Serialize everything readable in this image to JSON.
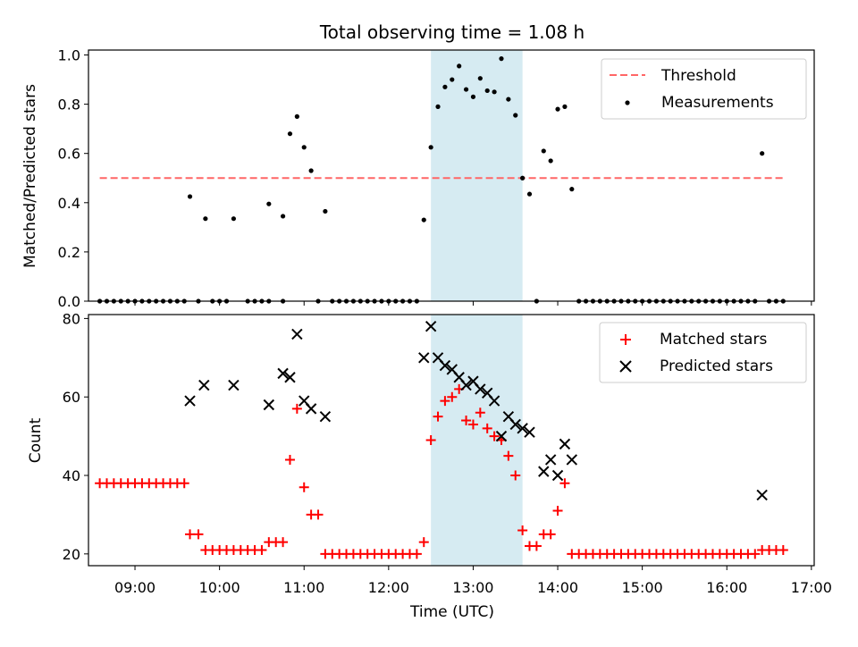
{
  "chart_data": {
    "type": "scatter",
    "title": "Total observing time = 1.08 h",
    "xlabel": "Time (UTC)",
    "x_ticks": [
      "09:00",
      "10:00",
      "11:00",
      "12:00",
      "13:00",
      "14:00",
      "15:00",
      "16:00",
      "17:00"
    ],
    "xlim": [
      "08:27",
      "17:02"
    ],
    "shaded_interval": [
      "12:30",
      "13:35"
    ],
    "colors": {
      "shade": "#add8e6",
      "threshold": "#ff6666",
      "matched": "#ff0000",
      "predicted": "#000000",
      "measurements": "#000000"
    },
    "panels": [
      {
        "ylabel": "Matched/Predicted stars",
        "ylim": [
          0,
          1.02
        ],
        "y_ticks": [
          "0.0",
          "0.2",
          "0.4",
          "0.6",
          "0.8",
          "1.0"
        ],
        "legend_position": "top-right",
        "threshold": {
          "name": "Threshold",
          "value": 0.5,
          "x_start": "08:35",
          "x_end": "16:40"
        },
        "series": [
          {
            "name": "Measurements",
            "marker": "dot",
            "points": [
              [
                "08:35",
                0
              ],
              [
                "08:40",
                0
              ],
              [
                "08:45",
                0
              ],
              [
                "08:50",
                0
              ],
              [
                "08:55",
                0
              ],
              [
                "09:00",
                0
              ],
              [
                "09:05",
                0
              ],
              [
                "09:10",
                0
              ],
              [
                "09:15",
                0
              ],
              [
                "09:20",
                0
              ],
              [
                "09:25",
                0
              ],
              [
                "09:30",
                0
              ],
              [
                "09:35",
                0
              ],
              [
                "09:39",
                0.425
              ],
              [
                "09:45",
                0
              ],
              [
                "09:50",
                0.335
              ],
              [
                "09:55",
                0
              ],
              [
                "10:00",
                0
              ],
              [
                "10:05",
                0
              ],
              [
                "10:10",
                0.335
              ],
              [
                "10:20",
                0
              ],
              [
                "10:25",
                0
              ],
              [
                "10:30",
                0
              ],
              [
                "10:35",
                0
              ],
              [
                "10:35",
                0.395
              ],
              [
                "10:45",
                0
              ],
              [
                "10:45",
                0.345
              ],
              [
                "10:50",
                0.68
              ],
              [
                "10:55",
                0.75
              ],
              [
                "11:00",
                0.625
              ],
              [
                "11:05",
                0.53
              ],
              [
                "11:10",
                0
              ],
              [
                "11:15",
                0.365
              ],
              [
                "11:20",
                0
              ],
              [
                "11:25",
                0
              ],
              [
                "11:30",
                0
              ],
              [
                "11:35",
                0
              ],
              [
                "11:40",
                0
              ],
              [
                "11:45",
                0
              ],
              [
                "11:50",
                0
              ],
              [
                "11:55",
                0
              ],
              [
                "12:00",
                0
              ],
              [
                "12:05",
                0
              ],
              [
                "12:10",
                0
              ],
              [
                "12:15",
                0
              ],
              [
                "12:20",
                0
              ],
              [
                "12:25",
                0.33
              ],
              [
                "12:30",
                0.625
              ],
              [
                "12:35",
                0.79
              ],
              [
                "12:40",
                0.87
              ],
              [
                "12:45",
                0.9
              ],
              [
                "12:50",
                0.955
              ],
              [
                "12:55",
                0.86
              ],
              [
                "13:00",
                0.83
              ],
              [
                "13:05",
                0.905
              ],
              [
                "13:10",
                0.855
              ],
              [
                "13:15",
                0.85
              ],
              [
                "13:20",
                0.985
              ],
              [
                "13:25",
                0.82
              ],
              [
                "13:30",
                0.755
              ],
              [
                "13:35",
                0.5
              ],
              [
                "13:40",
                0.435
              ],
              [
                "13:45",
                0
              ],
              [
                "13:50",
                0.61
              ],
              [
                "13:55",
                0.57
              ],
              [
                "14:00",
                0.78
              ],
              [
                "14:05",
                0.79
              ],
              [
                "14:10",
                0.455
              ],
              [
                "14:15",
                0
              ],
              [
                "14:20",
                0
              ],
              [
                "14:25",
                0
              ],
              [
                "14:30",
                0
              ],
              [
                "14:35",
                0
              ],
              [
                "14:40",
                0
              ],
              [
                "14:45",
                0
              ],
              [
                "14:50",
                0
              ],
              [
                "14:55",
                0
              ],
              [
                "15:00",
                0
              ],
              [
                "15:05",
                0
              ],
              [
                "15:10",
                0
              ],
              [
                "15:15",
                0
              ],
              [
                "15:20",
                0
              ],
              [
                "15:25",
                0
              ],
              [
                "15:30",
                0
              ],
              [
                "15:35",
                0
              ],
              [
                "15:40",
                0
              ],
              [
                "15:45",
                0
              ],
              [
                "15:50",
                0
              ],
              [
                "15:55",
                0
              ],
              [
                "16:00",
                0
              ],
              [
                "16:05",
                0
              ],
              [
                "16:10",
                0
              ],
              [
                "16:15",
                0
              ],
              [
                "16:20",
                0
              ],
              [
                "16:25",
                0.6
              ],
              [
                "16:30",
                0
              ],
              [
                "16:35",
                0
              ],
              [
                "16:40",
                0
              ]
            ]
          }
        ]
      },
      {
        "ylabel": "Count",
        "ylim": [
          17,
          81
        ],
        "y_ticks": [
          "20",
          "40",
          "60",
          "80"
        ],
        "legend_position": "top-right",
        "series": [
          {
            "name": "Matched stars",
            "marker": "plus",
            "points": [
              [
                "08:35",
                38
              ],
              [
                "08:40",
                38
              ],
              [
                "08:45",
                38
              ],
              [
                "08:50",
                38
              ],
              [
                "08:55",
                38
              ],
              [
                "09:00",
                38
              ],
              [
                "09:05",
                38
              ],
              [
                "09:10",
                38
              ],
              [
                "09:15",
                38
              ],
              [
                "09:20",
                38
              ],
              [
                "09:25",
                38
              ],
              [
                "09:30",
                38
              ],
              [
                "09:35",
                38
              ],
              [
                "09:39",
                25
              ],
              [
                "09:45",
                25
              ],
              [
                "09:50",
                21
              ],
              [
                "09:55",
                21
              ],
              [
                "10:00",
                21
              ],
              [
                "10:05",
                21
              ],
              [
                "10:10",
                21
              ],
              [
                "10:15",
                21
              ],
              [
                "10:20",
                21
              ],
              [
                "10:25",
                21
              ],
              [
                "10:30",
                21
              ],
              [
                "10:35",
                23
              ],
              [
                "10:40",
                23
              ],
              [
                "10:45",
                23
              ],
              [
                "10:50",
                44
              ],
              [
                "10:55",
                57
              ],
              [
                "11:00",
                37
              ],
              [
                "11:05",
                30
              ],
              [
                "11:10",
                30
              ],
              [
                "11:15",
                20
              ],
              [
                "11:20",
                20
              ],
              [
                "11:25",
                20
              ],
              [
                "11:30",
                20
              ],
              [
                "11:35",
                20
              ],
              [
                "11:40",
                20
              ],
              [
                "11:45",
                20
              ],
              [
                "11:50",
                20
              ],
              [
                "11:55",
                20
              ],
              [
                "12:00",
                20
              ],
              [
                "12:05",
                20
              ],
              [
                "12:10",
                20
              ],
              [
                "12:15",
                20
              ],
              [
                "12:20",
                20
              ],
              [
                "12:25",
                23
              ],
              [
                "12:30",
                49
              ],
              [
                "12:35",
                55
              ],
              [
                "12:40",
                59
              ],
              [
                "12:45",
                60
              ],
              [
                "12:50",
                62
              ],
              [
                "12:55",
                54
              ],
              [
                "13:00",
                53
              ],
              [
                "13:05",
                56
              ],
              [
                "13:10",
                52
              ],
              [
                "13:15",
                50
              ],
              [
                "13:20",
                49
              ],
              [
                "13:25",
                45
              ],
              [
                "13:30",
                40
              ],
              [
                "13:35",
                26
              ],
              [
                "13:40",
                22
              ],
              [
                "13:45",
                22
              ],
              [
                "13:50",
                25
              ],
              [
                "13:55",
                25
              ],
              [
                "14:00",
                31
              ],
              [
                "14:05",
                38
              ],
              [
                "14:10",
                20
              ],
              [
                "14:15",
                20
              ],
              [
                "14:20",
                20
              ],
              [
                "14:25",
                20
              ],
              [
                "14:30",
                20
              ],
              [
                "14:35",
                20
              ],
              [
                "14:40",
                20
              ],
              [
                "14:45",
                20
              ],
              [
                "14:50",
                20
              ],
              [
                "14:55",
                20
              ],
              [
                "15:00",
                20
              ],
              [
                "15:05",
                20
              ],
              [
                "15:10",
                20
              ],
              [
                "15:15",
                20
              ],
              [
                "15:20",
                20
              ],
              [
                "15:25",
                20
              ],
              [
                "15:30",
                20
              ],
              [
                "15:35",
                20
              ],
              [
                "15:40",
                20
              ],
              [
                "15:45",
                20
              ],
              [
                "15:50",
                20
              ],
              [
                "15:55",
                20
              ],
              [
                "16:00",
                20
              ],
              [
                "16:05",
                20
              ],
              [
                "16:10",
                20
              ],
              [
                "16:15",
                20
              ],
              [
                "16:20",
                20
              ],
              [
                "16:25",
                21
              ],
              [
                "16:30",
                21
              ],
              [
                "16:35",
                21
              ],
              [
                "16:40",
                21
              ]
            ]
          },
          {
            "name": "Predicted stars",
            "marker": "x",
            "points": [
              [
                "09:39",
                59
              ],
              [
                "09:49",
                63
              ],
              [
                "10:10",
                63
              ],
              [
                "10:35",
                58
              ],
              [
                "10:45",
                66
              ],
              [
                "10:50",
                65
              ],
              [
                "10:55",
                76
              ],
              [
                "11:00",
                59
              ],
              [
                "11:05",
                57
              ],
              [
                "11:15",
                55
              ],
              [
                "12:25",
                70
              ],
              [
                "12:30",
                78
              ],
              [
                "12:35",
                70
              ],
              [
                "12:40",
                68
              ],
              [
                "12:45",
                67
              ],
              [
                "12:50",
                65
              ],
              [
                "12:55",
                63
              ],
              [
                "13:00",
                64
              ],
              [
                "13:05",
                62
              ],
              [
                "13:10",
                61
              ],
              [
                "13:15",
                59
              ],
              [
                "13:20",
                50
              ],
              [
                "13:25",
                55
              ],
              [
                "13:30",
                53
              ],
              [
                "13:35",
                52
              ],
              [
                "13:40",
                51
              ],
              [
                "13:50",
                41
              ],
              [
                "13:55",
                44
              ],
              [
                "14:00",
                40
              ],
              [
                "14:05",
                48
              ],
              [
                "14:10",
                44
              ],
              [
                "16:25",
                35
              ]
            ]
          }
        ]
      }
    ]
  }
}
